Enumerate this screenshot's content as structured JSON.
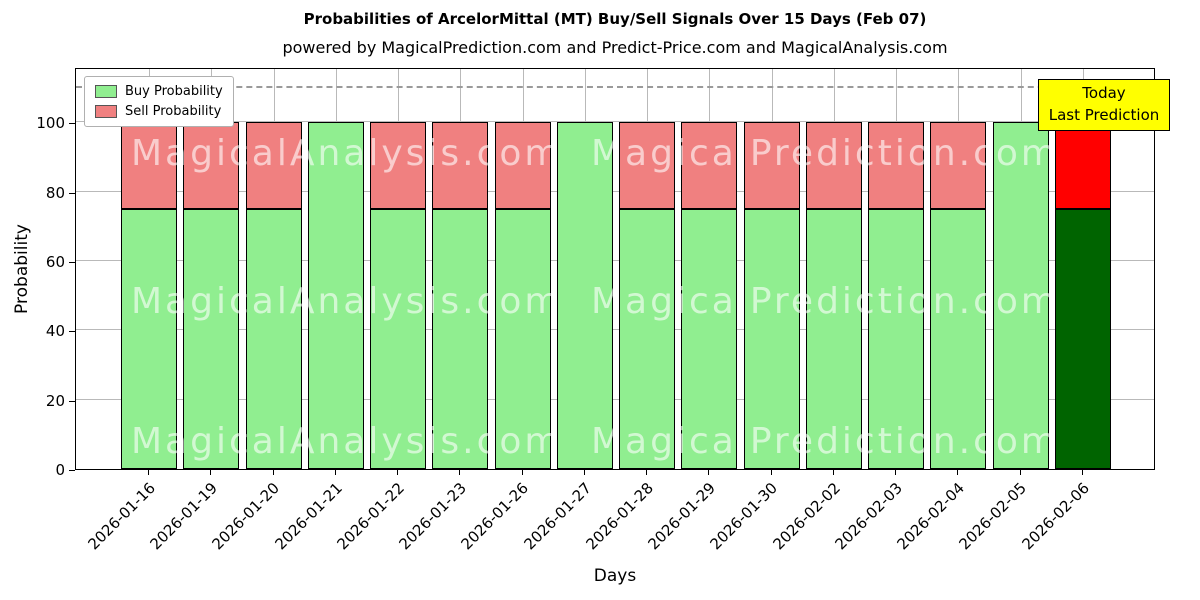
{
  "title": "Probabilities of ArcelorMittal (MT) Buy/Sell Signals Over 15 Days (Feb 07)",
  "subtitle": "powered by MagicalPrediction.com and Predict-Price.com and MagicalAnalysis.com",
  "axes": {
    "x_label": "Days",
    "y_label": "Probability",
    "y_ticks": [
      0,
      20,
      40,
      60,
      80,
      100
    ]
  },
  "legend": [
    {
      "label": "Buy Probability",
      "color": "#90EE90"
    },
    {
      "label": "Sell Probability",
      "color": "#F08080"
    }
  ],
  "annotation": {
    "lines": [
      "Today",
      "Last Prediction"
    ],
    "bg_color": "#FFFF00"
  },
  "reference_line": {
    "value": 110,
    "style": "dashed",
    "color": "#9A9A9A"
  },
  "watermarks": [
    "MagicalAnalysis.com",
    "MagicalPrediction.com"
  ],
  "chart_data": {
    "type": "bar",
    "stacked": true,
    "title": "Probabilities of ArcelorMittal (MT) Buy/Sell Signals Over 15 Days (Feb 07)",
    "xlabel": "Days",
    "ylabel": "Probability",
    "ylim": [
      0,
      116
    ],
    "grid": true,
    "legend_position": "upper-left",
    "categories": [
      "2026-01-16",
      "2026-01-19",
      "2026-01-20",
      "2026-01-21",
      "2026-01-22",
      "2026-01-23",
      "2026-01-26",
      "2026-01-27",
      "2026-01-28",
      "2026-01-29",
      "2026-01-30",
      "2026-02-02",
      "2026-02-03",
      "2026-02-04",
      "2026-02-05",
      "2026-02-06"
    ],
    "series": [
      {
        "name": "Buy Probability",
        "color": "#90EE90",
        "values": [
          75,
          75,
          75,
          100,
          75,
          75,
          75,
          100,
          75,
          75,
          75,
          75,
          75,
          75,
          100,
          75
        ]
      },
      {
        "name": "Sell Probability",
        "color": "#F08080",
        "values": [
          25,
          25,
          25,
          0,
          25,
          25,
          25,
          0,
          25,
          25,
          25,
          25,
          25,
          25,
          0,
          25
        ]
      }
    ],
    "highlight_last_bar": {
      "buy_color": "#006400",
      "sell_color": "#FF0000"
    }
  }
}
